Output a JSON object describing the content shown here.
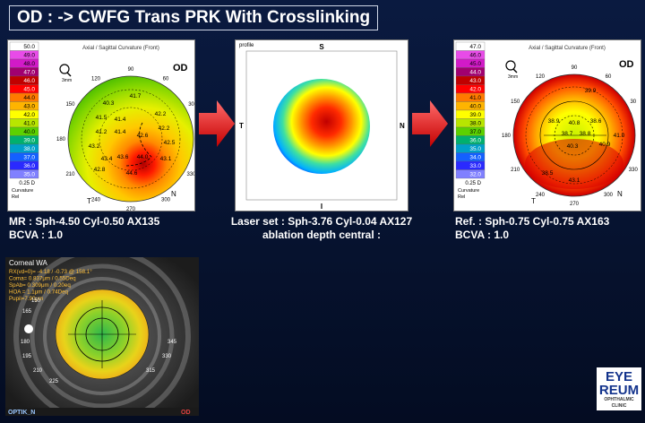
{
  "title": "OD : -> CWFG Trans PRK With Crosslinking",
  "panel_left": {
    "header": "Axial / Sagittal Curvature (Front)",
    "eye": "OD",
    "scale": [
      "50.0",
      "49.0",
      "48.0",
      "47.0",
      "46.0",
      "45.0",
      "44.0",
      "43.0",
      "42.0",
      "41.0",
      "40.0",
      "39.0",
      "38.0",
      "37.0",
      "36.0",
      "35.0"
    ],
    "scale_colors": [
      "#ffffff",
      "#e84be8",
      "#d21ac8",
      "#a10070",
      "#c00000",
      "#ff0000",
      "#ff7a00",
      "#ffb400",
      "#ffff00",
      "#b8e600",
      "#5cd100",
      "#00b06e",
      "#00a0c8",
      "#1460ff",
      "#2a2aff",
      "#8080ff"
    ],
    "step": "0.25 D",
    "scale_foot": [
      "Curvature",
      "Rel"
    ],
    "values": [
      "40.3",
      "41.7",
      "41.5",
      "41.4",
      "42.2",
      "41.2",
      "41.4",
      "42.2",
      "43.2",
      "42.6",
      "42.5",
      "43.4",
      "43.6",
      "44.0",
      "43.1",
      "42.8",
      "44.6"
    ],
    "angles": [
      "90",
      "120",
      "60",
      "150",
      "30",
      "180",
      "0",
      "210",
      "330",
      "240",
      "270",
      "300"
    ],
    "corner_t": "T",
    "corner_n": "N",
    "mm": "3mm"
  },
  "caption_left": {
    "line1": "MR : Sph-4.50  Cyl-0.50  AX135",
    "line2": "BCVA : 1.0"
  },
  "panel_center": {
    "label_top": "S",
    "label_left": "T",
    "label_right": "N",
    "label_bottom": "I",
    "corner": "profile"
  },
  "caption_center": {
    "line1": "Laser set : Sph-3.76  Cyl-0.04  AX127",
    "line2": "ablation depth central :"
  },
  "panel_right": {
    "header": "Axial / Sagittal Curvature (Front)",
    "eye": "OD",
    "scale": [
      "47.0",
      "46.0",
      "45.0",
      "44.0",
      "43.0",
      "42.0",
      "41.0",
      "40.0",
      "39.0",
      "38.0",
      "37.0",
      "36.0",
      "35.0",
      "34.0",
      "33.0",
      "32.0"
    ],
    "scale_colors": [
      "#ffffff",
      "#e84be8",
      "#d21ac8",
      "#a10070",
      "#c00000",
      "#ff0000",
      "#ff7a00",
      "#ffb400",
      "#ffff00",
      "#b8e600",
      "#5cd100",
      "#00b06e",
      "#00a0c8",
      "#1460ff",
      "#2a2aff",
      "#8080ff"
    ],
    "step": "0.25 D",
    "scale_foot": [
      "Curvature",
      "Rel"
    ],
    "values": [
      "39.9",
      "38.9",
      "40.8",
      "38.6",
      "38.7",
      "38.8",
      "40.3",
      "40.9",
      "41.0",
      "43.1",
      "38.5"
    ],
    "angles": [
      "90",
      "120",
      "60",
      "150",
      "30",
      "180",
      "0",
      "210",
      "330",
      "240",
      "270",
      "300"
    ],
    "corner_t": "T",
    "corner_n": "N",
    "mm": "3mm"
  },
  "caption_right": {
    "line1": "Ref. : Sph-0.75  Cyl-0.75  AX163",
    "line2": "BCVA : 1.0"
  },
  "corneal_wa": {
    "title": "Corneal WA",
    "lines": [
      "RX(vd=0)= -4.18 / -0.73 @ 158.1°",
      "Coma= 0.837μm / 0.55Deq",
      "SpAb= 0.309μm / 0.20eq",
      "HOA = 1.1μm / 0.74Deq",
      "Pupil=7.90μm"
    ],
    "ticks": [
      "150",
      "165",
      "180",
      "195",
      "210",
      "225",
      "315",
      "330",
      "345"
    ],
    "footer_left": "OPTIK_N",
    "footer_right": "OD"
  },
  "logo": {
    "line1": "EYE",
    "line2": "REUM",
    "line3": "OPHTHALMIC CLINIC"
  }
}
